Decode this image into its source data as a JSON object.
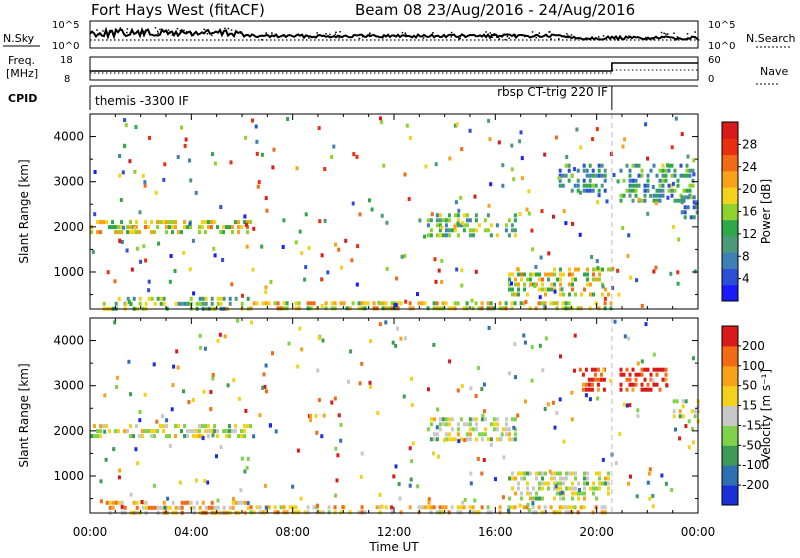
{
  "header": {
    "title": "Fort Hays West (fitACF)",
    "beam_info": "Beam 08 23/Aug/2016 - 24/Aug/2016"
  },
  "status_panels": {
    "nsky_label": "N.Sky",
    "nsky_ticks": [
      "10^5",
      "10^0"
    ],
    "nsearch_label": "N.Search",
    "nsearch_ticks": [
      "10^5",
      "10^0"
    ],
    "freq_label_line1": "Freq.",
    "freq_label_line2": "[MHz]",
    "freq_ticks": [
      "18",
      "8"
    ],
    "nave_label": "Nave",
    "nave_ticks": [
      "60",
      "0"
    ],
    "cpid_label": "CPID",
    "cpid_mode_1": "themis -3300 IF",
    "cpid_mode_2": "rbsp CT-trig 220 IF",
    "mode_change_hour": 20.6
  },
  "chart_data": [
    {
      "type": "heatmap",
      "name": "power",
      "ylabel": "Slant Range [km]",
      "xlabel": "Time UT",
      "x_ticks": [
        "00:00",
        "04:00",
        "08:00",
        "12:00",
        "16:00",
        "20:00",
        "00:00"
      ],
      "x_range_hours": [
        0,
        24
      ],
      "y_ticks": [
        1000,
        2000,
        3000,
        4000
      ],
      "ylim": [
        180,
        4500
      ],
      "colorbar_label": "Power [dB]",
      "colorbar_ticks": [
        4,
        8,
        12,
        16,
        20,
        24,
        28
      ],
      "colorbar_colors": [
        "#1a1aff",
        "#2b4fd6",
        "#3f7fb8",
        "#4d9a7a",
        "#2ea84a",
        "#8fd22d",
        "#f2d21b",
        "#f7a21a",
        "#f26a14",
        "#e83010",
        "#d81a1a"
      ],
      "regions": [
        {
          "t0": 0.0,
          "t1": 6.3,
          "r0": 1850,
          "r1": 2150,
          "level": 0.55
        },
        {
          "t0": 0.5,
          "t1": 6.2,
          "r0": 180,
          "r1": 450,
          "level": 0.45
        },
        {
          "t0": 6.3,
          "t1": 20.6,
          "r0": 180,
          "r1": 350,
          "level": 0.6
        },
        {
          "t0": 13.3,
          "t1": 16.8,
          "r0": 1800,
          "r1": 2300,
          "level": 0.4
        },
        {
          "t0": 16.5,
          "t1": 20.6,
          "r0": 450,
          "r1": 1100,
          "level": 0.55
        },
        {
          "t0": 18.5,
          "t1": 20.3,
          "r0": 2800,
          "r1": 3400,
          "level": 0.3
        },
        {
          "t0": 20.9,
          "t1": 23.8,
          "r0": 2600,
          "r1": 3400,
          "level": 0.35
        },
        {
          "t0": 23.2,
          "t1": 24.0,
          "r0": 2200,
          "r1": 2700,
          "level": 0.3
        }
      ]
    },
    {
      "type": "heatmap",
      "name": "velocity",
      "ylabel": "Slant Range [km]",
      "xlabel": "Time UT",
      "x_ticks": [
        "00:00",
        "04:00",
        "08:00",
        "12:00",
        "16:00",
        "20:00",
        "00:00"
      ],
      "x_range_hours": [
        0,
        24
      ],
      "y_ticks": [
        1000,
        2000,
        3000,
        4000
      ],
      "ylim": [
        180,
        4500
      ],
      "colorbar_label": "Velocity [m s⁻¹]",
      "colorbar_ticks": [
        200,
        100,
        50,
        15,
        -15,
        -50,
        -100,
        -200
      ],
      "colorbar_colors": [
        "#1a2fd6",
        "#2f6fb3",
        "#3f9a55",
        "#7fd24a",
        "#c8c8c8",
        "#f2d21b",
        "#f7a21a",
        "#f26a14",
        "#d81a1a"
      ],
      "regions": [
        {
          "t0": 0.0,
          "t1": 6.3,
          "r0": 1850,
          "r1": 2150,
          "level": 0.5
        },
        {
          "t0": 0.5,
          "t1": 6.2,
          "r0": 180,
          "r1": 450,
          "level": 0.65
        },
        {
          "t0": 6.3,
          "t1": 20.6,
          "r0": 180,
          "r1": 350,
          "level": 0.62
        },
        {
          "t0": 13.3,
          "t1": 16.8,
          "r0": 1800,
          "r1": 2300,
          "level": 0.5
        },
        {
          "t0": 16.5,
          "t1": 20.6,
          "r0": 450,
          "r1": 1100,
          "level": 0.5
        },
        {
          "t0": 19.3,
          "t1": 20.3,
          "r0": 2850,
          "r1": 3400,
          "level": 0.95
        },
        {
          "t0": 20.9,
          "t1": 22.7,
          "r0": 2900,
          "r1": 3400,
          "level": 0.95
        },
        {
          "t0": 23.0,
          "t1": 24.0,
          "r0": 2200,
          "r1": 2700,
          "level": 0.5
        }
      ]
    }
  ]
}
